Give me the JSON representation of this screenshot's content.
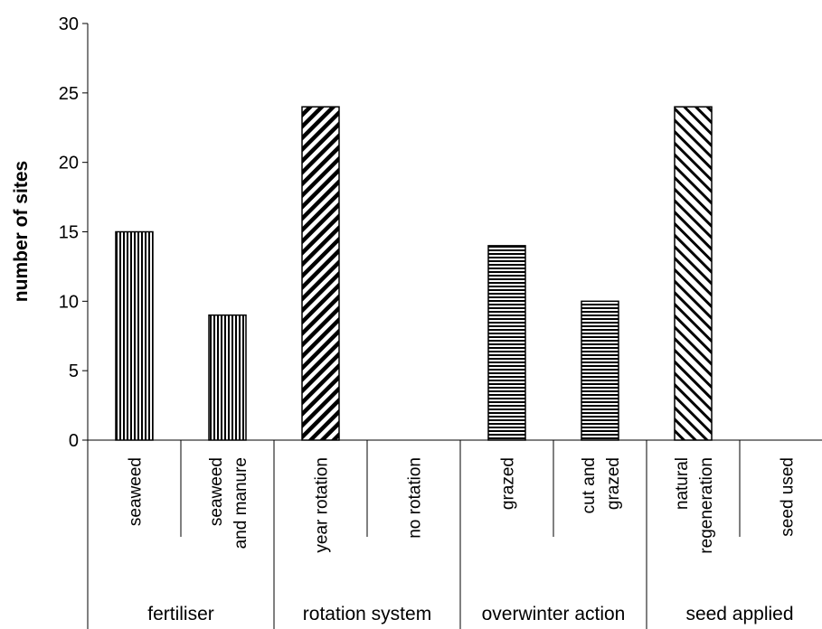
{
  "chart_data": {
    "type": "bar",
    "title": "",
    "xlabel": "",
    "ylabel": "number of sites",
    "ylim": [
      0,
      30
    ],
    "yticks": [
      0,
      5,
      10,
      15,
      20,
      25,
      30
    ],
    "grid": false,
    "legend": "none",
    "groups": [
      {
        "label": "fertiliser",
        "pattern": "vertical",
        "categories": [
          {
            "lines": [
              "seaweed"
            ],
            "value": 15
          },
          {
            "lines": [
              "seaweed",
              "and manure"
            ],
            "value": 9
          }
        ]
      },
      {
        "label": "rotation system",
        "pattern": "diag-down",
        "categories": [
          {
            "lines": [
              "year rotation"
            ],
            "value": 24
          },
          {
            "lines": [
              "no rotation"
            ],
            "value": 0
          }
        ]
      },
      {
        "label": "overwinter action",
        "pattern": "horizontal",
        "categories": [
          {
            "lines": [
              "grazed"
            ],
            "value": 14
          },
          {
            "lines": [
              "cut and",
              "grazed"
            ],
            "value": 10
          }
        ]
      },
      {
        "label": "seed applied",
        "pattern": "diag-up",
        "categories": [
          {
            "lines": [
              "natural",
              "regeneration"
            ],
            "value": 24
          },
          {
            "lines": [
              "seed used"
            ],
            "value": 0
          }
        ]
      }
    ],
    "colors": {
      "bar_stroke": "#000000",
      "pattern_ink": "#000000",
      "background": "#ffffff"
    }
  }
}
